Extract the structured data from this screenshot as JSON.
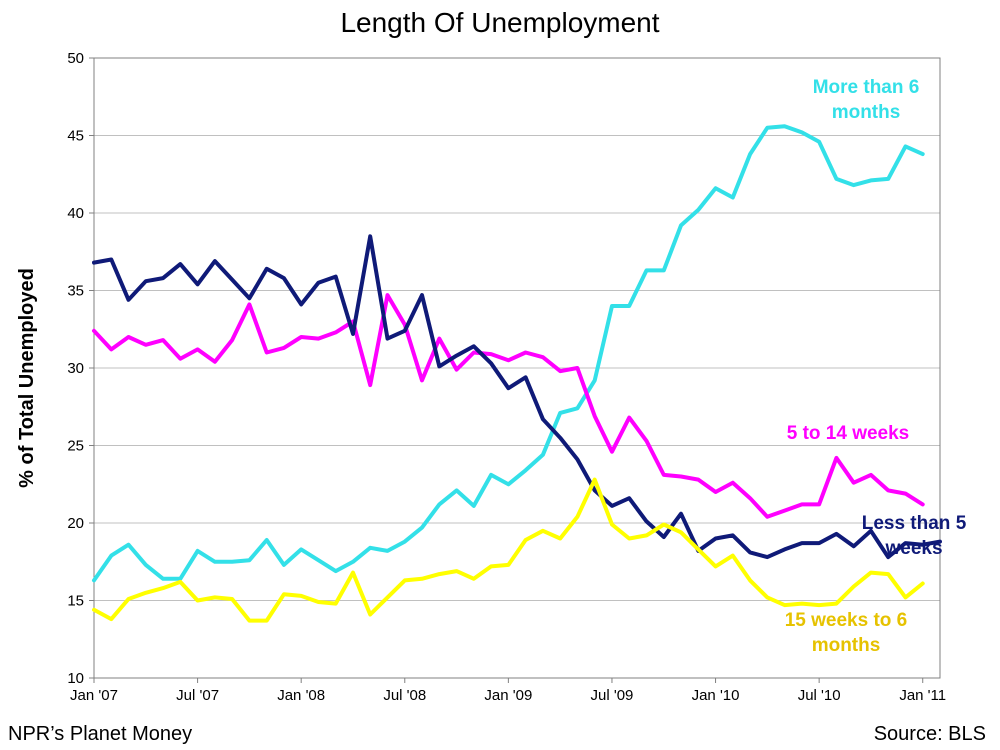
{
  "chart_data": {
    "type": "line",
    "title": "Length Of Unemployment",
    "ylabel": "% of Total Unemployed",
    "xlabel": "",
    "ylim": [
      10,
      50
    ],
    "yticks": [
      10,
      15,
      20,
      25,
      30,
      35,
      40,
      45,
      50
    ],
    "grid": true,
    "xticks": [
      "Jan '07",
      "Jul '07",
      "Jan '08",
      "Jul '08",
      "Jan '09",
      "Jul '09",
      "Jan '10",
      "Jul '10",
      "Jan '11"
    ],
    "x": [
      "2007-01",
      "2007-02",
      "2007-03",
      "2007-04",
      "2007-05",
      "2007-06",
      "2007-07",
      "2007-08",
      "2007-09",
      "2007-10",
      "2007-11",
      "2007-12",
      "2008-01",
      "2008-02",
      "2008-03",
      "2008-04",
      "2008-05",
      "2008-06",
      "2008-07",
      "2008-08",
      "2008-09",
      "2008-10",
      "2008-11",
      "2008-12",
      "2009-01",
      "2009-02",
      "2009-03",
      "2009-04",
      "2009-05",
      "2009-06",
      "2009-07",
      "2009-08",
      "2009-09",
      "2009-10",
      "2009-11",
      "2009-12",
      "2010-01",
      "2010-02",
      "2010-03",
      "2010-04",
      "2010-05",
      "2010-06",
      "2010-07",
      "2010-08",
      "2010-09",
      "2010-10",
      "2010-11",
      "2010-12",
      "2011-01",
      "2011-02"
    ],
    "series": [
      {
        "name": "More than 6 months",
        "color": "#33e0e8",
        "values": [
          16.3,
          17.9,
          18.6,
          17.3,
          16.4,
          16.4,
          18.2,
          17.5,
          17.5,
          17.6,
          18.9,
          17.3,
          18.3,
          17.6,
          16.9,
          17.5,
          18.4,
          18.2,
          18.8,
          19.7,
          21.2,
          22.1,
          21.1,
          23.1,
          22.5,
          23.4,
          24.4,
          27.1,
          27.4,
          29.2,
          34.0,
          34.0,
          36.3,
          36.3,
          39.2,
          40.2,
          41.6,
          41.0,
          43.8,
          45.5,
          45.6,
          45.2,
          44.6,
          42.2,
          41.8,
          42.1,
          42.2,
          44.3,
          43.8,
          null
        ]
      },
      {
        "name": "5 to 14 weeks",
        "color": "#ff00ff",
        "values": [
          32.4,
          31.2,
          32.0,
          31.5,
          31.8,
          30.6,
          31.2,
          30.4,
          31.8,
          34.1,
          31.0,
          31.3,
          32.0,
          31.9,
          32.3,
          33.0,
          28.9,
          34.7,
          32.8,
          29.2,
          31.9,
          29.9,
          31.0,
          30.9,
          30.5,
          31.0,
          30.7,
          29.8,
          30.0,
          26.9,
          24.6,
          26.8,
          25.3,
          23.1,
          23.0,
          22.8,
          22.0,
          22.6,
          21.6,
          20.4,
          20.8,
          21.2,
          21.2,
          24.2,
          22.6,
          23.1,
          22.1,
          21.9,
          21.2,
          null
        ]
      },
      {
        "name": "Less than 5 weeks",
        "color": "#0f1a78",
        "values": [
          36.8,
          37.0,
          34.4,
          35.6,
          35.8,
          36.7,
          35.4,
          36.9,
          35.7,
          34.5,
          36.4,
          35.8,
          34.1,
          35.5,
          35.9,
          32.2,
          38.5,
          31.9,
          32.4,
          34.7,
          30.1,
          30.8,
          31.4,
          30.3,
          28.7,
          29.4,
          26.7,
          25.5,
          24.1,
          22.1,
          21.1,
          21.6,
          20.1,
          19.1,
          20.6,
          18.2,
          19.0,
          19.2,
          18.1,
          17.8,
          18.3,
          18.7,
          18.7,
          19.3,
          18.5,
          19.5,
          17.8,
          18.7,
          18.6,
          18.8
        ]
      },
      {
        "name": "15 weeks to 6 months",
        "color": "#ffff00",
        "values": [
          14.4,
          13.8,
          15.1,
          15.5,
          15.8,
          16.2,
          15.0,
          15.2,
          15.1,
          13.7,
          13.7,
          15.4,
          15.3,
          14.9,
          14.8,
          16.8,
          14.1,
          15.2,
          16.3,
          16.4,
          16.7,
          16.9,
          16.4,
          17.2,
          17.3,
          18.9,
          19.5,
          19.0,
          20.4,
          22.8,
          19.9,
          19.0,
          19.2,
          19.9,
          19.4,
          18.3,
          17.2,
          17.9,
          16.3,
          15.2,
          14.7,
          14.8,
          14.7,
          14.8,
          15.9,
          16.8,
          16.7,
          15.2,
          16.1,
          null
        ]
      }
    ],
    "annotations": [
      {
        "lines": [
          "More than 6",
          "months"
        ],
        "color": "#33e0e8"
      },
      {
        "lines": [
          "5 to 14 weeks"
        ],
        "color": "#ff00ff"
      },
      {
        "lines": [
          "Less than 5",
          "weeks"
        ],
        "color": "#0f1a78"
      },
      {
        "lines": [
          "15 weeks to 6",
          "months"
        ],
        "color": "#e6c200"
      }
    ]
  },
  "footer": {
    "left": "NPR’s Planet Money",
    "right": "Source: BLS"
  }
}
